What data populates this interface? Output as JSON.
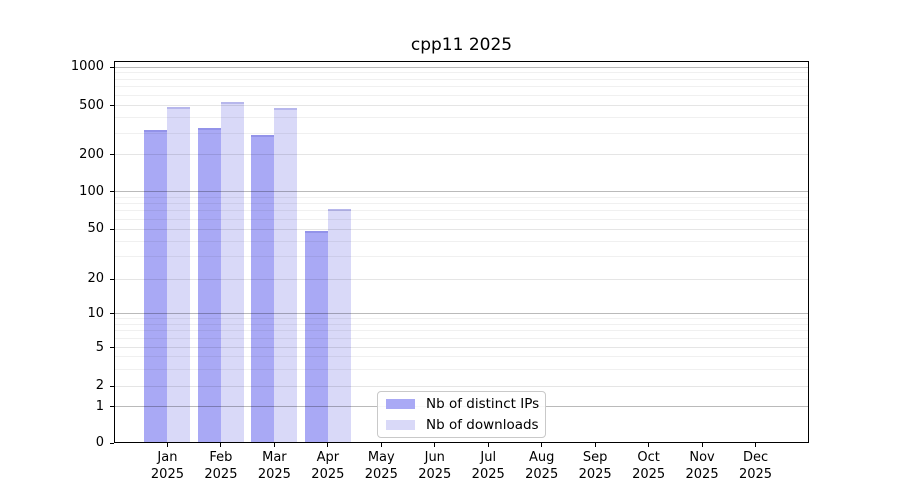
{
  "chart_data": {
    "type": "bar",
    "title": "cpp11 2025",
    "categories": [
      "Jan",
      "Feb",
      "Mar",
      "Apr",
      "May",
      "Jun",
      "Jul",
      "Aug",
      "Sep",
      "Oct",
      "Nov",
      "Dec"
    ],
    "year_label": "2025",
    "series": [
      {
        "name": "Nb of distinct IPs",
        "color": "#a9a9f5",
        "values": [
          320,
          330,
          290,
          48,
          null,
          null,
          null,
          null,
          null,
          null,
          null,
          null
        ]
      },
      {
        "name": "Nb of downloads",
        "color": "#d9d9f8",
        "values": [
          490,
          535,
          475,
          72,
          null,
          null,
          null,
          null,
          null,
          null,
          null,
          null
        ]
      }
    ],
    "y_ticks": [
      0,
      1,
      2,
      5,
      10,
      20,
      50,
      100,
      200,
      500,
      1000
    ],
    "y_scale": "symlog",
    "ylim": [
      0,
      1120
    ],
    "grid": true,
    "legend": {
      "labels": [
        "Nb of distinct IPs",
        "Nb of downloads"
      ],
      "position": "inside lower center"
    }
  }
}
